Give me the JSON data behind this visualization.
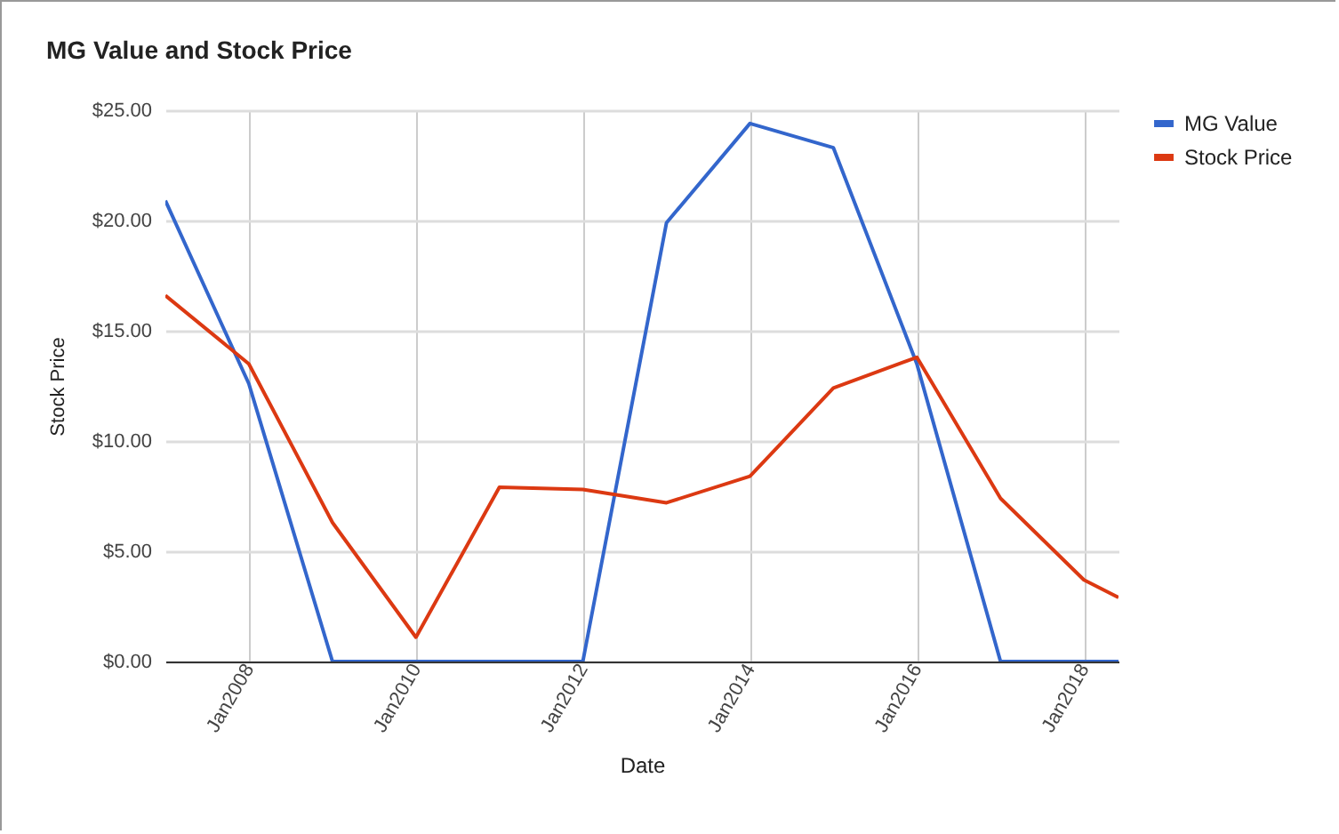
{
  "chart_data": {
    "type": "line",
    "title": "MG Value and Stock Price",
    "xlabel": "Date",
    "ylabel": "Stock Price",
    "x": [
      "2007-01",
      "2008-01",
      "2009-01",
      "2010-01",
      "2011-01",
      "2012-01",
      "2013-01",
      "2014-01",
      "2015-01",
      "2016-01",
      "2017-01",
      "2018-01",
      "2018-06"
    ],
    "series": [
      {
        "name": "MG Value",
        "color": "#3366cc",
        "values": [
          20.9,
          12.6,
          0,
          0,
          0,
          0,
          19.9,
          24.4,
          23.3,
          13.5,
          0,
          0,
          0
        ]
      },
      {
        "name": "Stock Price",
        "color": "#dc3912",
        "values": [
          16.6,
          13.5,
          6.3,
          1.1,
          7.9,
          7.8,
          7.2,
          8.4,
          12.4,
          13.8,
          7.4,
          3.7,
          2.9
        ]
      }
    ],
    "xlim": [
      "2007-01",
      "2018-06"
    ],
    "xticks": [
      {
        "value": "2008-01",
        "label": "Jan2008"
      },
      {
        "value": "2010-01",
        "label": "Jan2010"
      },
      {
        "value": "2012-01",
        "label": "Jan2012"
      },
      {
        "value": "2014-01",
        "label": "Jan2014"
      },
      {
        "value": "2016-01",
        "label": "Jan2016"
      },
      {
        "value": "2018-01",
        "label": "Jan2018"
      }
    ],
    "ylim": [
      0,
      25
    ],
    "yticks": [
      {
        "value": 0,
        "label": "$0.00"
      },
      {
        "value": 5,
        "label": "$5.00"
      },
      {
        "value": 10,
        "label": "$10.00"
      },
      {
        "value": 15,
        "label": "$15.00"
      },
      {
        "value": 20,
        "label": "$20.00"
      },
      {
        "value": 25,
        "label": "$25.00"
      }
    ],
    "grid": true,
    "legend": "top right",
    "line_style": "solid"
  }
}
